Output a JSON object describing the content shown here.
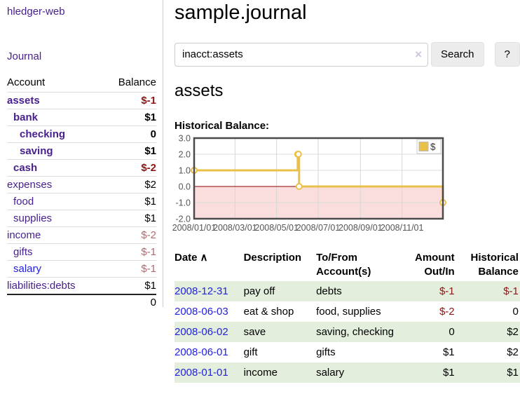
{
  "app": {
    "title": "hledger-web",
    "journal_link": "Journal"
  },
  "sidebar": {
    "header": {
      "account": "Account",
      "balance": "Balance"
    },
    "accounts": [
      {
        "name": "assets",
        "indent": 1,
        "bold": true,
        "balance": "$-1",
        "balance_style": "neg-strong",
        "link_style": "purple"
      },
      {
        "name": "bank",
        "indent": 2,
        "bold": true,
        "balance": "$1",
        "balance_style": "",
        "link_style": "purple"
      },
      {
        "name": "checking",
        "indent": 3,
        "bold": true,
        "balance": "0",
        "balance_style": "",
        "link_style": "purple"
      },
      {
        "name": "saving",
        "indent": 3,
        "bold": true,
        "balance": "$1",
        "balance_style": "",
        "link_style": "purple"
      },
      {
        "name": "cash",
        "indent": 2,
        "bold": true,
        "balance": "$-2",
        "balance_style": "neg-strong",
        "link_style": "purple"
      },
      {
        "name": "expenses",
        "indent": 1,
        "bold": false,
        "balance": "$2",
        "balance_style": "",
        "link_style": "purple"
      },
      {
        "name": "food",
        "indent": 2,
        "bold": false,
        "balance": "$1",
        "balance_style": "",
        "link_style": "purple"
      },
      {
        "name": "supplies",
        "indent": 2,
        "bold": false,
        "balance": "$1",
        "balance_style": "",
        "link_style": "purple"
      },
      {
        "name": "income",
        "indent": 1,
        "bold": false,
        "balance": "$-2",
        "balance_style": "neg-soft",
        "link_style": "purple"
      },
      {
        "name": "gifts",
        "indent": 2,
        "bold": false,
        "balance": "$-1",
        "balance_style": "neg-soft",
        "link_style": "purple"
      },
      {
        "name": "salary",
        "indent": 2,
        "bold": false,
        "balance": "$-1",
        "balance_style": "neg-soft",
        "link_style": "blue"
      },
      {
        "name": "liabilities:debts",
        "indent": 1,
        "bold": false,
        "balance": "$1",
        "balance_style": "",
        "link_style": "purple"
      }
    ],
    "total": "0"
  },
  "header": {
    "title": "sample.journal"
  },
  "search": {
    "value": "inacct:assets",
    "clear_icon": "×",
    "button_label": "Search",
    "help_label": "?"
  },
  "main": {
    "account_heading": "assets",
    "chart_label": "Historical Balance:"
  },
  "chart_data": {
    "type": "line",
    "step": true,
    "title": "Historical Balance:",
    "series": [
      {
        "name": "$",
        "color": "#e9c048",
        "points": [
          [
            "2008-01-01",
            1
          ],
          [
            "2008-06-01",
            2
          ],
          [
            "2008-06-02",
            2
          ],
          [
            "2008-06-03",
            0
          ],
          [
            "2008-12-31",
            -1
          ]
        ]
      }
    ],
    "x_domain": [
      "2008-01-01",
      "2008-12-31"
    ],
    "x_ticks": [
      "2008/01/01",
      "2008/03/01",
      "2008/05/01",
      "2008/07/01",
      "2008/09/01",
      "2008/11/01"
    ],
    "y_ticks": [
      "3.0",
      "2.0",
      "1.0",
      "0.0",
      "-1.0",
      "-2.0"
    ],
    "ylim": [
      -2,
      3
    ],
    "grid": true,
    "negative_region_color": "#fadddd",
    "zero_line_color": "#8b0000",
    "border_color": "#4a4a4a",
    "legend": {
      "label": "$",
      "swatch_color": "#e9c048",
      "position": "top-right"
    }
  },
  "register": {
    "sort_icon": "∧",
    "columns": [
      "Date",
      "Description",
      "To/From Account(s)",
      "Amount Out/In",
      "Historical Balance"
    ],
    "rows": [
      {
        "date": "2008-12-31",
        "description": "pay off",
        "accounts": "debts",
        "amount": "$-1",
        "amount_neg": true,
        "balance": "$-1",
        "balance_neg": true
      },
      {
        "date": "2008-06-03",
        "description": "eat & shop",
        "accounts": "food, supplies",
        "amount": "$-2",
        "amount_neg": true,
        "balance": "0",
        "balance_neg": false
      },
      {
        "date": "2008-06-02",
        "description": "save",
        "accounts": "saving, checking",
        "amount": "0",
        "amount_neg": false,
        "balance": "$2",
        "balance_neg": false
      },
      {
        "date": "2008-06-01",
        "description": "gift",
        "accounts": "gifts",
        "amount": "$1",
        "amount_neg": false,
        "balance": "$2",
        "balance_neg": false
      },
      {
        "date": "2008-01-01",
        "description": "income",
        "accounts": "salary",
        "amount": "$1",
        "amount_neg": false,
        "balance": "$1",
        "balance_neg": false
      }
    ]
  }
}
